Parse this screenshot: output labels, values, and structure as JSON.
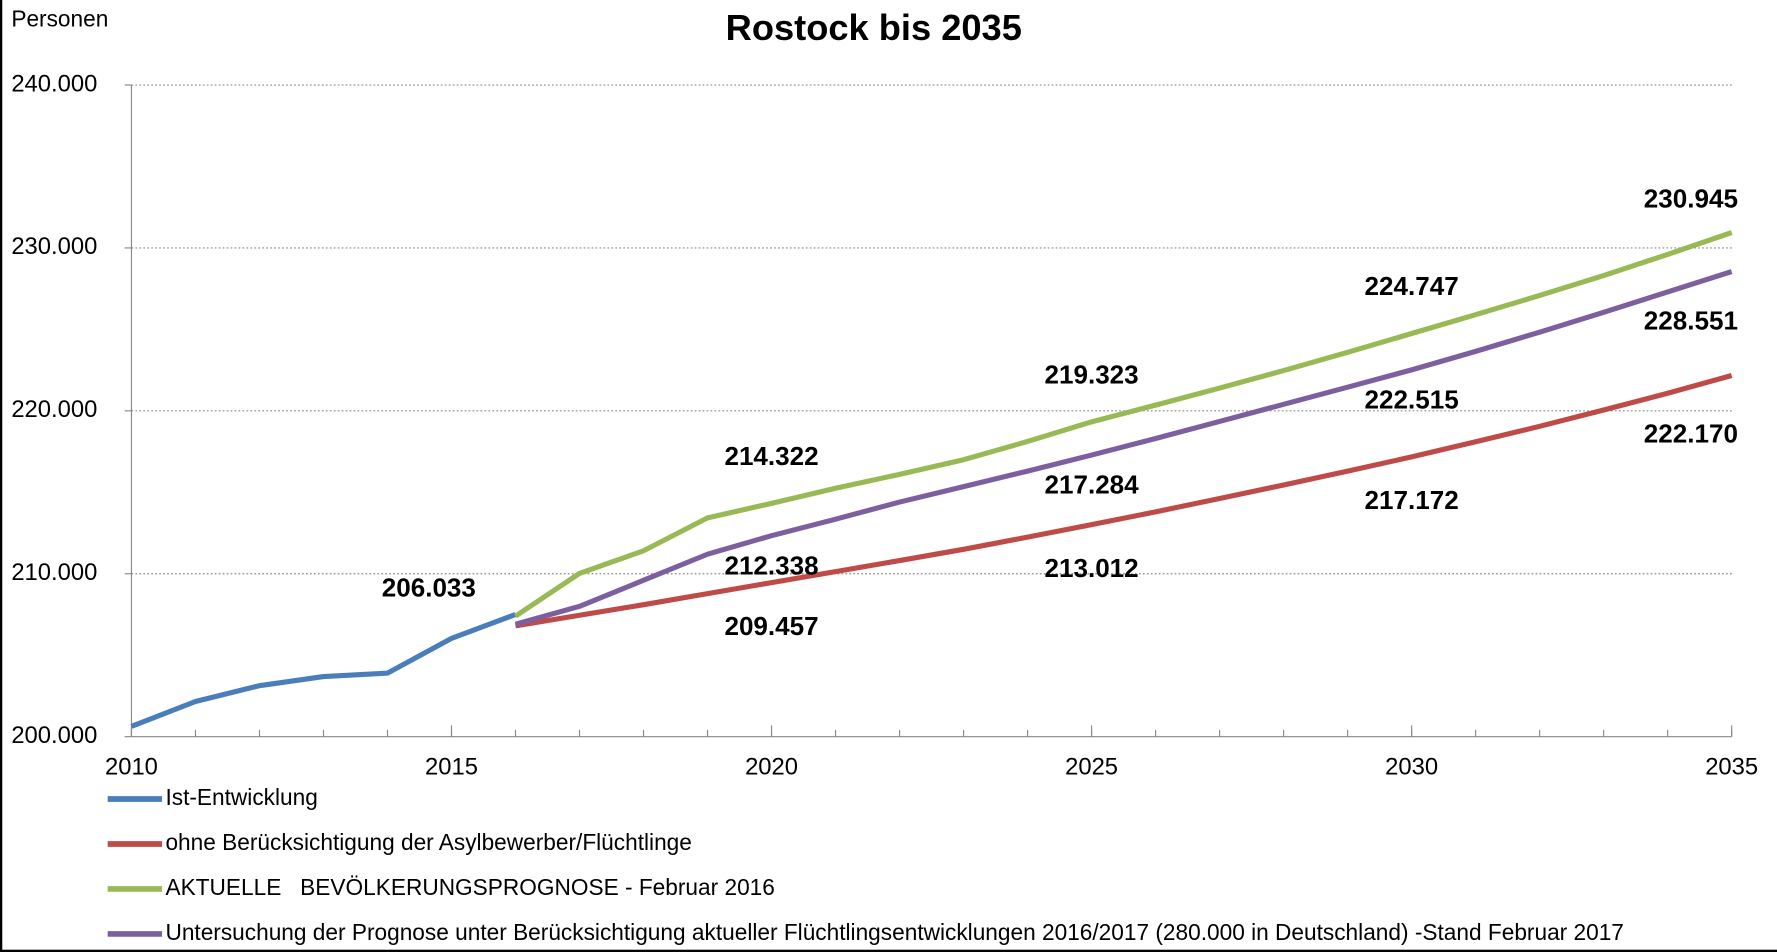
{
  "chart_data": {
    "type": "line",
    "title": "Rostock bis 2035",
    "y_label": "Personen",
    "x": [
      2010,
      2011,
      2012,
      2013,
      2014,
      2015,
      2016,
      2017,
      2018,
      2019,
      2020,
      2021,
      2022,
      2023,
      2024,
      2025,
      2026,
      2027,
      2028,
      2029,
      2030,
      2031,
      2032,
      2033,
      2034,
      2035
    ],
    "xlim": [
      2010,
      2035
    ],
    "xticks": [
      2010,
      2015,
      2020,
      2025,
      2030,
      2035
    ],
    "ylim": [
      200000,
      240000
    ],
    "yticks": [
      {
        "value": 200000,
        "label": "200.000"
      },
      {
        "value": 210000,
        "label": "210.000"
      },
      {
        "value": 220000,
        "label": "220.000"
      },
      {
        "value": 230000,
        "label": "230.000"
      },
      {
        "value": 240000,
        "label": "240.000"
      }
    ],
    "grid": true,
    "legend": "bottom-left",
    "series": [
      {
        "name": "Ist-Entwicklung",
        "color": "#4a7ebb",
        "values": [
          200630,
          202160,
          203130,
          203690,
          203900,
          206033,
          207500,
          null,
          null,
          null,
          null,
          null,
          null,
          null,
          null,
          null,
          null,
          null,
          null,
          null,
          null,
          null,
          null,
          null,
          null,
          null
        ],
        "value_labels": [
          null,
          null,
          null,
          null,
          null,
          "206.033",
          null,
          null,
          null,
          null,
          null,
          null,
          null,
          null,
          null,
          null,
          null,
          null,
          null,
          null,
          null,
          null,
          null,
          null,
          null,
          null
        ]
      },
      {
        "name": "ohne Berücksichtigung der Asylbewerber/Flüchtlinge",
        "color": "#be4b48",
        "values": [
          null,
          null,
          null,
          null,
          null,
          null,
          206800,
          207450,
          208100,
          208780,
          209457,
          210130,
          210810,
          211500,
          212250,
          213012,
          213800,
          214620,
          215450,
          216300,
          217172,
          218100,
          219050,
          220050,
          221080,
          222170
        ],
        "value_labels": [
          null,
          null,
          null,
          null,
          null,
          null,
          null,
          null,
          null,
          null,
          "209.457",
          null,
          null,
          null,
          null,
          "213.012",
          null,
          null,
          null,
          null,
          "217.172",
          null,
          null,
          null,
          null,
          "222.170"
        ]
      },
      {
        "name": "AKTUELLE   BEVÖLKERUNGSPROGNOSE - Februar 2016",
        "color": "#98b954",
        "values": [
          null,
          null,
          null,
          null,
          null,
          null,
          207400,
          210020,
          211410,
          213430,
          214322,
          215250,
          216100,
          217000,
          218120,
          219323,
          220350,
          221400,
          222470,
          223590,
          224747,
          225900,
          227080,
          228300,
          229600,
          230945
        ],
        "value_labels": [
          null,
          null,
          null,
          null,
          null,
          null,
          null,
          null,
          null,
          null,
          "214.322",
          null,
          null,
          null,
          null,
          "219.323",
          null,
          null,
          null,
          null,
          "224.747",
          null,
          null,
          null,
          null,
          "230.945"
        ]
      },
      {
        "name": "Untersuchung der Prognose unter Berücksichtigung aktueller Flüchtlingsentwicklungen 2016/2017 (280.000 in Deutschland) -Stand Februar 2017",
        "color": "#7d5fa0",
        "values": [
          null,
          null,
          null,
          null,
          null,
          null,
          206900,
          208000,
          209600,
          211200,
          212338,
          213350,
          214400,
          215350,
          216300,
          217284,
          218300,
          219350,
          220400,
          221450,
          222515,
          223650,
          224830,
          226050,
          227300,
          228551
        ],
        "value_labels": [
          null,
          null,
          null,
          null,
          null,
          null,
          null,
          null,
          null,
          null,
          "212.338",
          null,
          null,
          null,
          null,
          "217.284",
          null,
          null,
          null,
          null,
          "222.515",
          null,
          null,
          null,
          null,
          "228.551"
        ]
      }
    ]
  }
}
